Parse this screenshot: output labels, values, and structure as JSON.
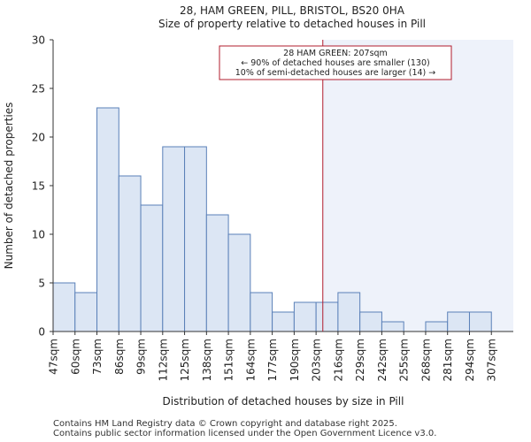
{
  "chart_data": {
    "type": "bar",
    "title": "28, HAM GREEN, PILL, BRISTOL, BS20 0HA",
    "subtitle": "Size of property relative to detached houses in Pill",
    "xlabel": "Distribution of detached houses by size in Pill",
    "ylabel": "Number of detached properties",
    "categories": [
      "47sqm",
      "60sqm",
      "73sqm",
      "86sqm",
      "99sqm",
      "112sqm",
      "125sqm",
      "138sqm",
      "151sqm",
      "164sqm",
      "177sqm",
      "190sqm",
      "203sqm",
      "216sqm",
      "229sqm",
      "242sqm",
      "255sqm",
      "268sqm",
      "281sqm",
      "294sqm",
      "307sqm"
    ],
    "values": [
      5,
      4,
      23,
      16,
      13,
      19,
      19,
      12,
      10,
      4,
      2,
      3,
      3,
      4,
      2,
      1,
      0,
      1,
      2,
      2,
      0
    ],
    "ylim": [
      0,
      30
    ],
    "yticks": [
      0,
      5,
      10,
      15,
      20,
      25,
      30
    ],
    "grid": false,
    "bar_color": "#dce6f4",
    "bar_edge_color": "#5a80b8",
    "highlight_color": "#eef2fa",
    "marker": {
      "value": 207,
      "color": "#b01c2e",
      "lines": [
        "28 HAM GREEN: 207sqm",
        "← 90% of detached houses are smaller (130)",
        "10% of semi-detached houses are larger (14) →"
      ]
    }
  },
  "footer": {
    "line1": "Contains HM Land Registry data © Crown copyright and database right 2025.",
    "line2": "Contains public sector information licensed under the Open Government Licence v3.0."
  }
}
